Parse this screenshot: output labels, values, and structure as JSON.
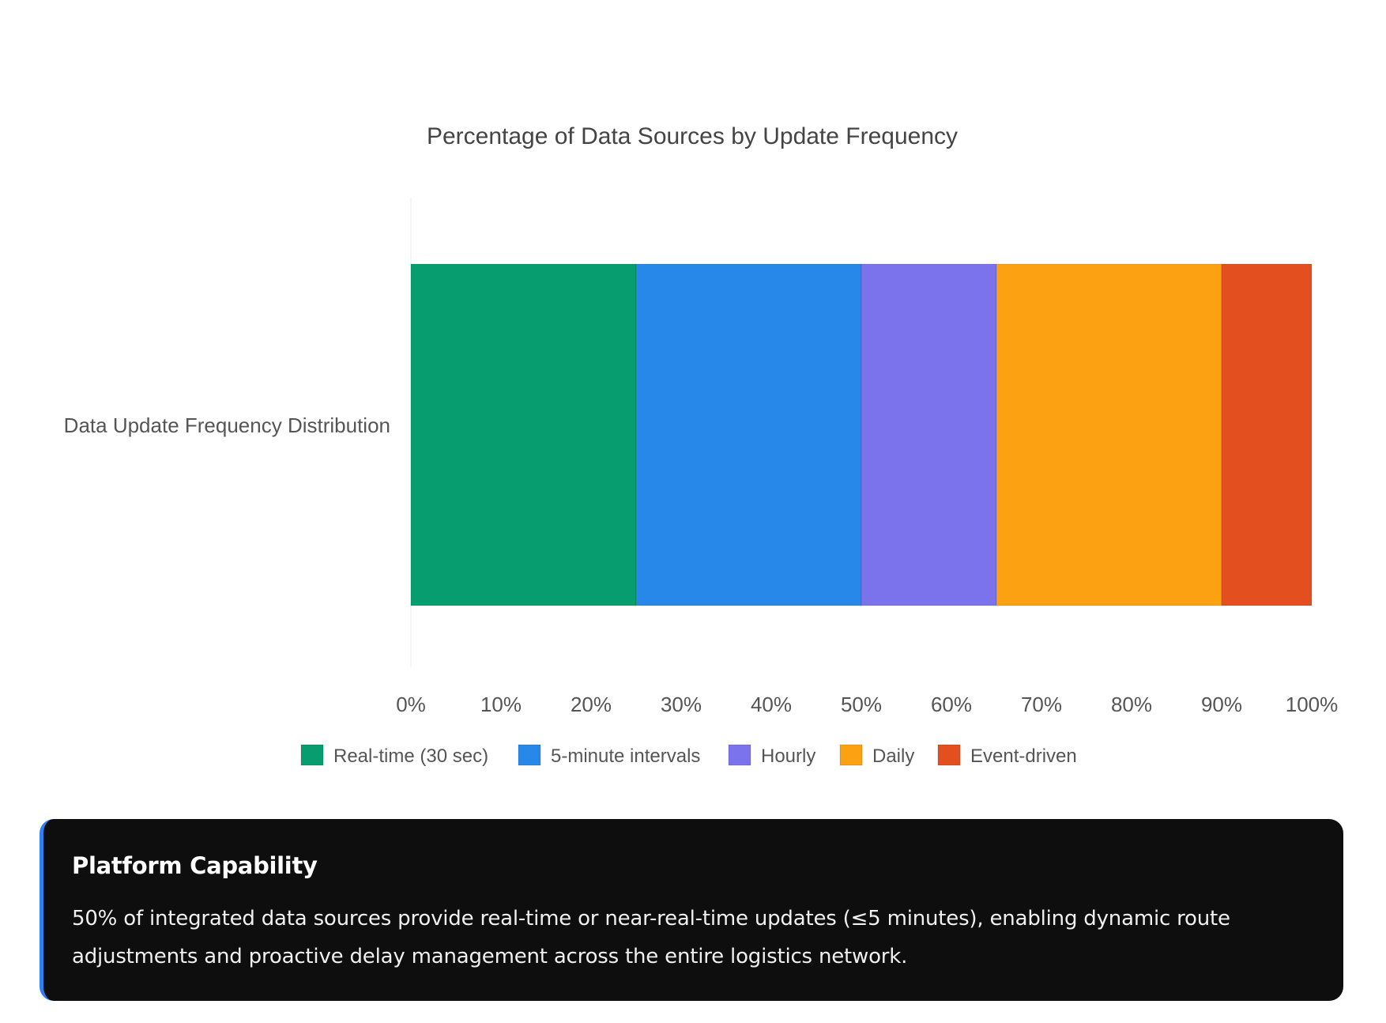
{
  "chart_data": {
    "type": "bar",
    "orientation": "horizontal",
    "stacked": true,
    "title": "Percentage of Data Sources by Update Frequency",
    "categories": [
      "Data Update Frequency Distribution"
    ],
    "series": [
      {
        "name": "Real-time (30 sec)",
        "values": [
          25
        ],
        "color": "#079d6e"
      },
      {
        "name": "5-minute intervals",
        "values": [
          25
        ],
        "color": "#2788ea"
      },
      {
        "name": "Hourly",
        "values": [
          15
        ],
        "color": "#7b73ec"
      },
      {
        "name": "Daily",
        "values": [
          25
        ],
        "color": "#fca112"
      },
      {
        "name": "Event-driven",
        "values": [
          10
        ],
        "color": "#e34f1f"
      }
    ],
    "xlim": [
      0,
      100
    ],
    "x_ticks": [
      "0%",
      "10%",
      "20%",
      "30%",
      "40%",
      "50%",
      "60%",
      "70%",
      "80%",
      "90%",
      "100%"
    ],
    "grid": false,
    "legend_position": "bottom"
  },
  "callout": {
    "title": "Platform Capability",
    "body": "50% of integrated data sources provide real-time or near-real-time updates (≤5 minutes), enabling dynamic route adjustments and proactive delay management across the entire logistics network.",
    "accent_color": "#2f7ff0"
  }
}
